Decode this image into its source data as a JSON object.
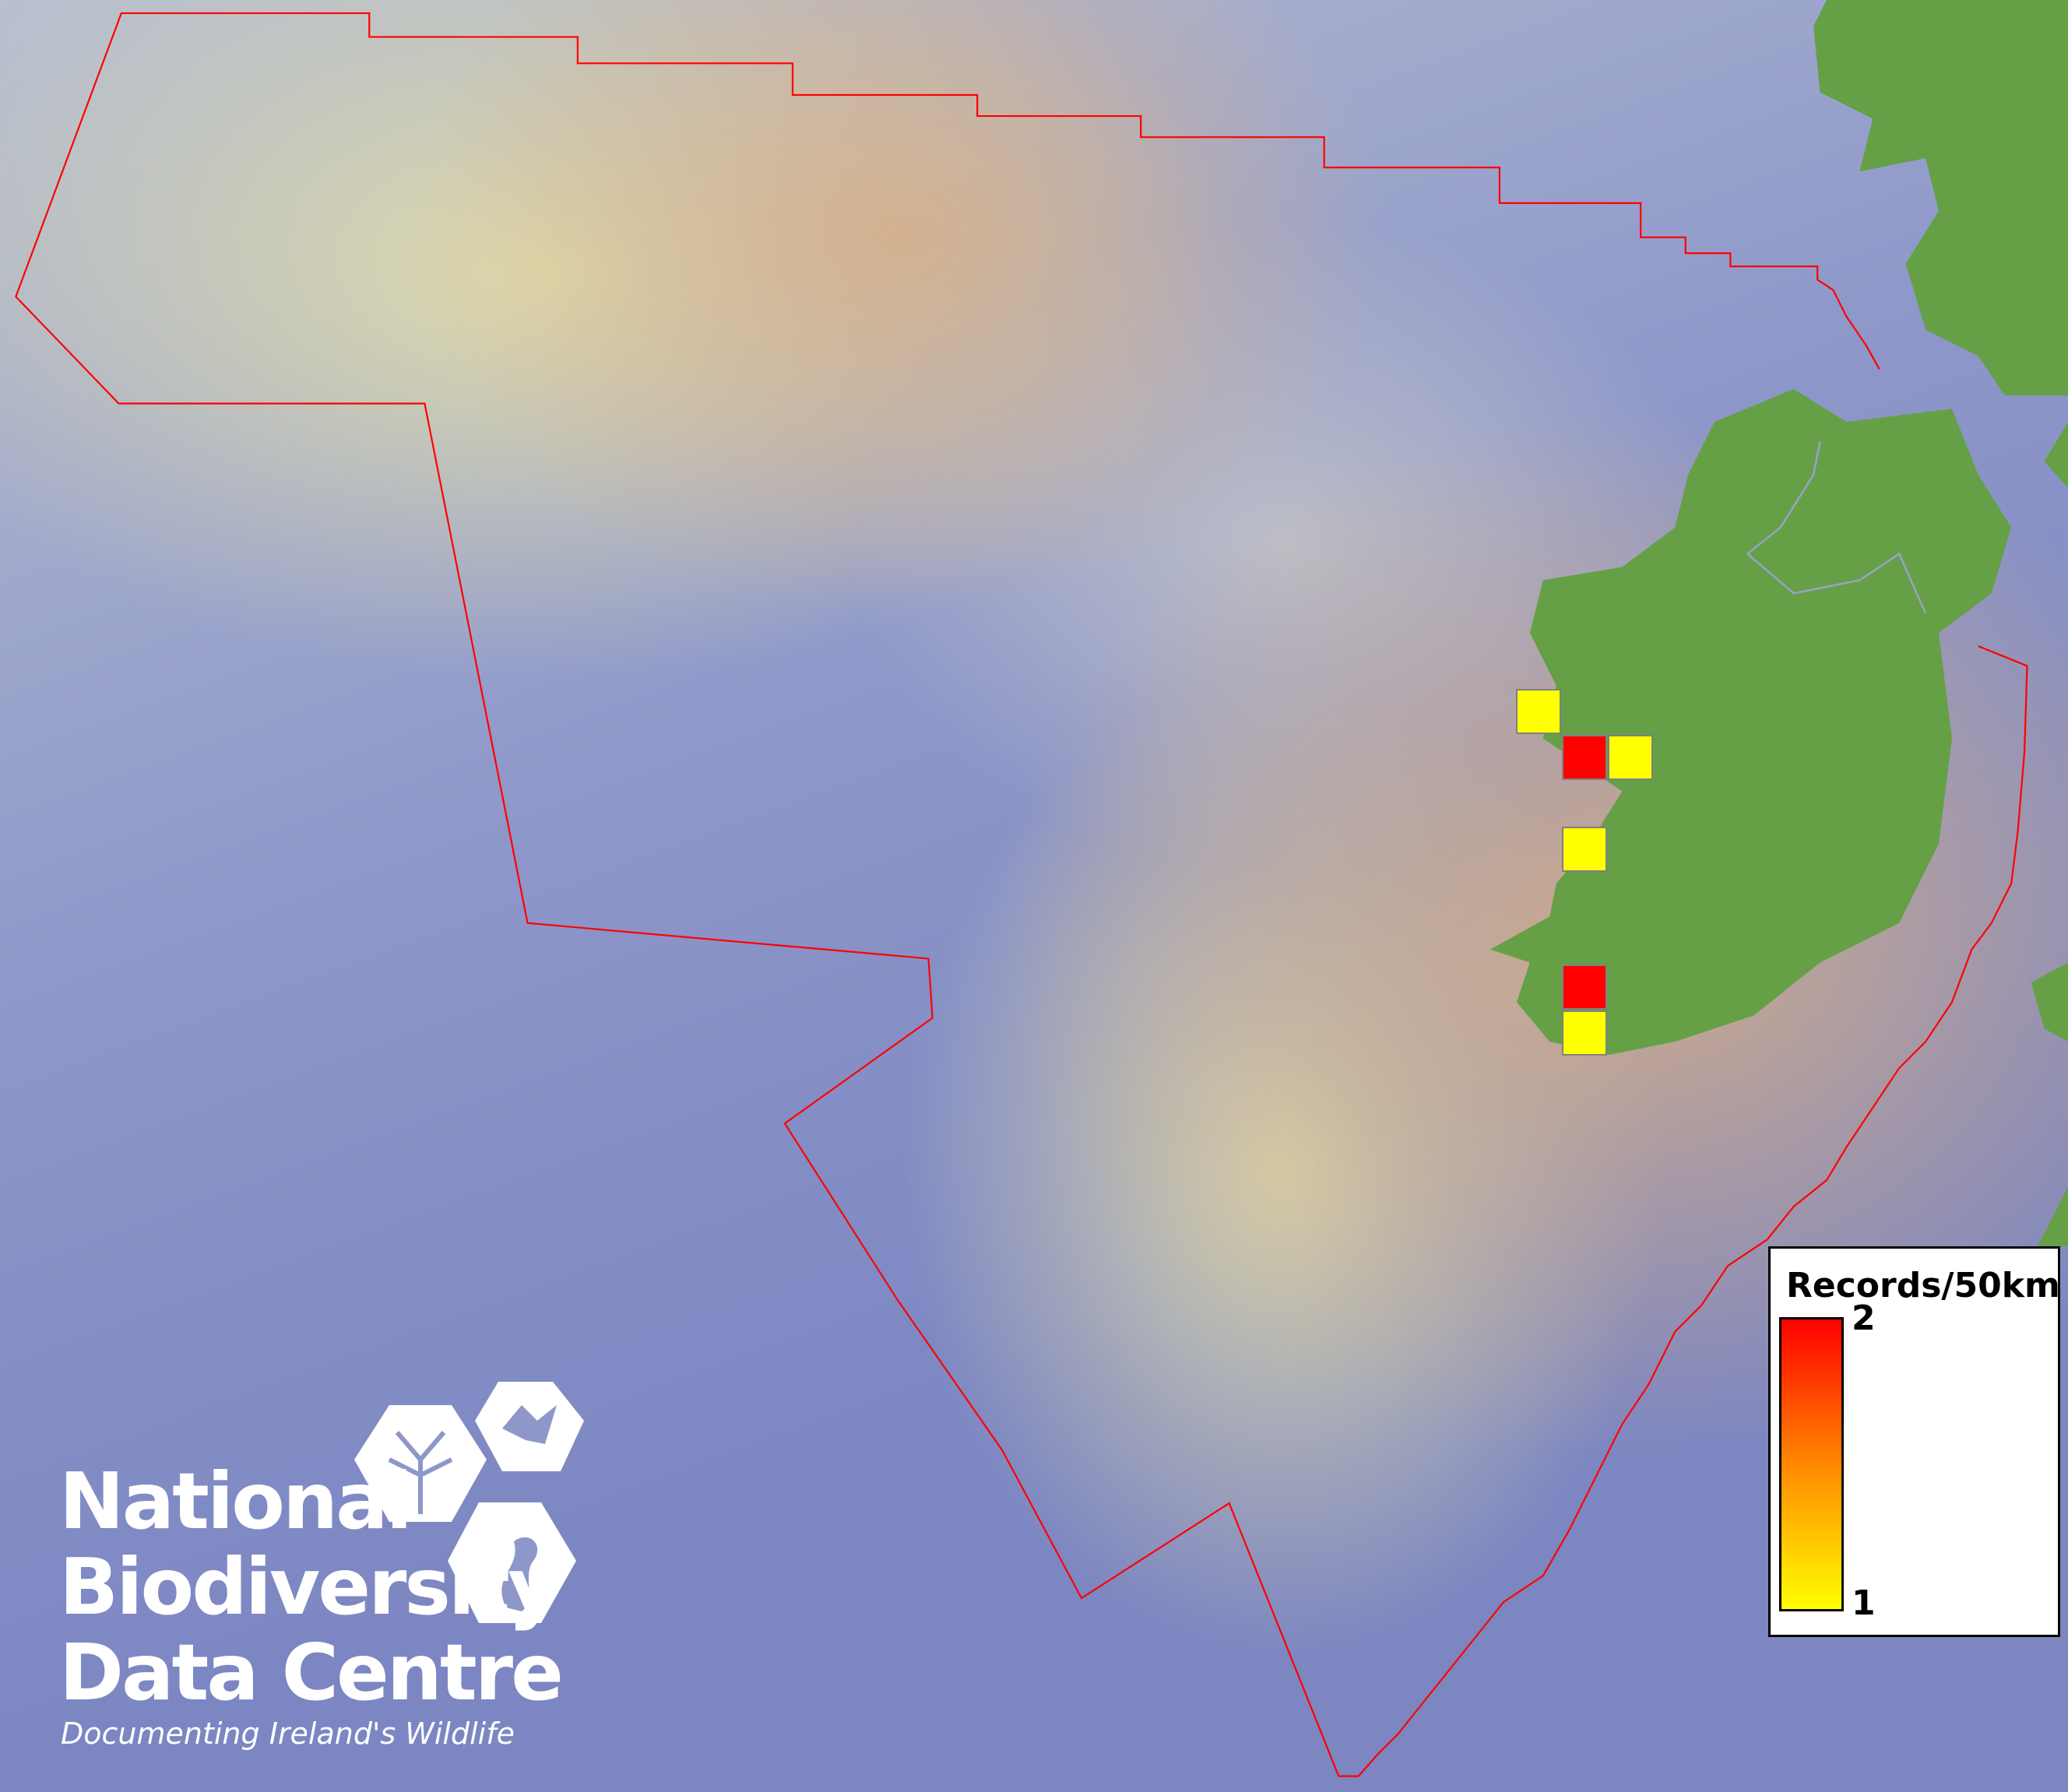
{
  "legend": {
    "title": "Records/50km",
    "max_label": "2",
    "min_label": "1",
    "color_min": "#ffff00",
    "color_max": "#ff0000"
  },
  "records": [
    {
      "count": 1
    },
    {
      "count": 2
    },
    {
      "count": 1
    },
    {
      "count": 1
    },
    {
      "count": 2
    },
    {
      "count": 1
    }
  ],
  "boundary_color": "#ff0000",
  "land_color": "#65a046",
  "logo": {
    "line1": "National",
    "line2": "Biodiversity",
    "line3": "Data Centre",
    "tagline": "Documenting Ireland's Wildlife"
  }
}
